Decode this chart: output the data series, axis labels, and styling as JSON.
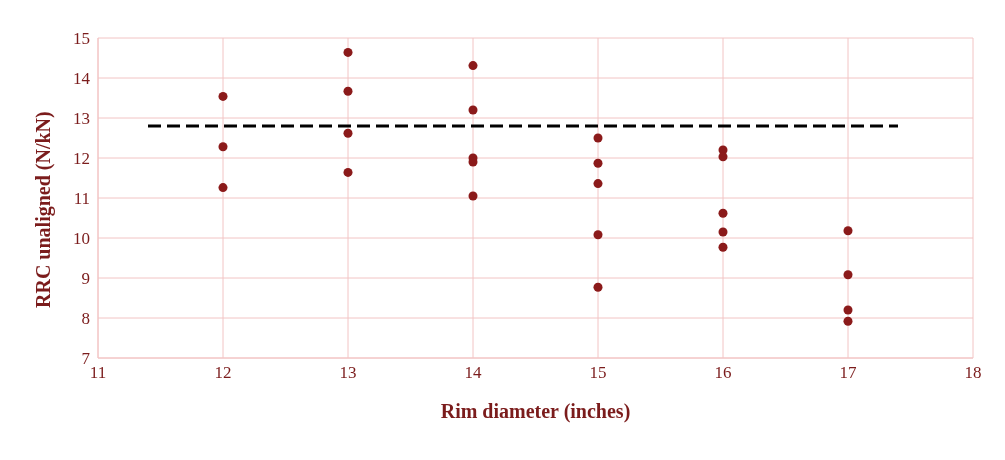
{
  "chart_data": {
    "type": "scatter",
    "xlabel": "Rim diameter (inches)",
    "ylabel": "RRC unaligned (N/kN)",
    "xlim": [
      11,
      18
    ],
    "xticks": [
      11,
      12,
      13,
      14,
      15,
      16,
      17,
      18
    ],
    "ylim": [
      7,
      15
    ],
    "yticks": [
      7,
      8,
      9,
      10,
      11,
      12,
      13,
      14,
      15
    ],
    "grid": true,
    "marker": "circle",
    "series": [
      {
        "color": "#8b1a1a",
        "x": [
          12,
          12,
          12,
          13,
          13,
          13,
          13,
          14,
          14,
          14,
          14,
          14,
          15,
          15,
          15,
          15,
          15,
          16,
          16,
          16,
          16,
          16,
          17,
          17,
          17,
          17
        ],
        "values": [
          13.54,
          12.28,
          11.26,
          14.64,
          13.67,
          12.62,
          11.64,
          14.31,
          13.2,
          12.0,
          11.9,
          11.05,
          12.5,
          11.87,
          11.36,
          10.08,
          8.77,
          12.2,
          12.03,
          10.62,
          10.15,
          9.77,
          10.18,
          9.08,
          8.2,
          7.92
        ]
      },
      {
        "type": "line",
        "color": "#000000",
        "line_style": "dashed",
        "marker": "none",
        "x": [
          11.4,
          17.4
        ],
        "values": [
          12.8,
          12.8
        ]
      }
    ]
  }
}
